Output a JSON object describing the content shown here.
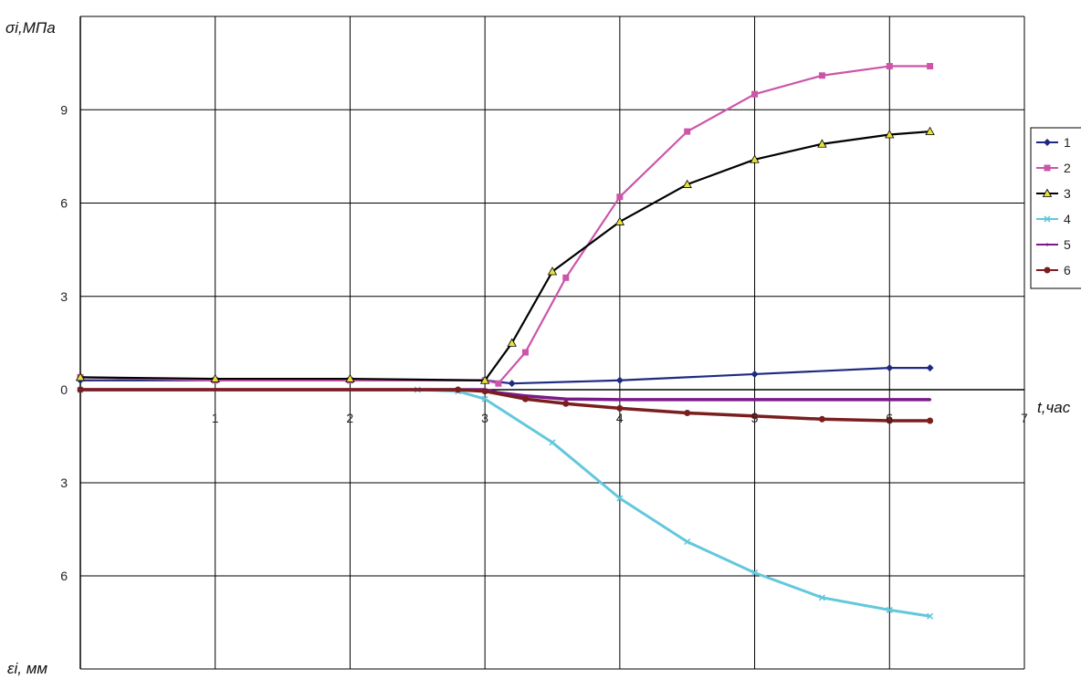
{
  "chart_data": {
    "type": "scatter",
    "ylabel_top": "σi,МПа",
    "ylabel_bottom": "εi, мм",
    "xlabel": "t,час",
    "xlim": [
      0,
      7
    ],
    "x_ticks": [
      "1",
      "2",
      "3",
      "4",
      "5",
      "6",
      "7"
    ],
    "upper_axis": {
      "unit": "МПа",
      "range": [
        0,
        12
      ],
      "ticks": [
        "0",
        "3",
        "6",
        "9"
      ]
    },
    "lower_axis": {
      "unit": "мм",
      "range": [
        0,
        9
      ],
      "ticks": [
        "3",
        "6"
      ]
    },
    "grid": true,
    "legend_position": "right",
    "series": [
      {
        "name": "1",
        "color": "#1f2a80",
        "marker": "diamond",
        "axis": "upper",
        "x": [
          0,
          1,
          2,
          3,
          3.2,
          4,
          5,
          6,
          6.3
        ],
        "y": [
          0.3,
          0.3,
          0.3,
          0.3,
          0.2,
          0.3,
          0.5,
          0.7,
          0.7
        ]
      },
      {
        "name": "2",
        "color": "#cc55aa",
        "marker": "square",
        "axis": "upper",
        "x": [
          0,
          1,
          2,
          3,
          3.1,
          3.3,
          3.6,
          4,
          4.5,
          5,
          5.5,
          6,
          6.3
        ],
        "y": [
          0.4,
          0.3,
          0.3,
          0.3,
          0.2,
          1.2,
          3.6,
          6.2,
          8.3,
          9.5,
          10.1,
          10.4,
          10.4
        ]
      },
      {
        "name": "3",
        "color": "#000000",
        "marker": "triangle",
        "axis": "upper",
        "x": [
          0,
          1,
          2,
          3,
          3.2,
          3.5,
          4,
          4.5,
          5,
          5.5,
          6,
          6.3
        ],
        "y": [
          0.4,
          0.35,
          0.35,
          0.3,
          1.5,
          3.8,
          5.4,
          6.6,
          7.4,
          7.9,
          8.2,
          8.3
        ]
      },
      {
        "name": "4",
        "color": "#62c8dc",
        "marker": "cross",
        "axis": "lower",
        "x": [
          0,
          2.5,
          2.8,
          3,
          3.5,
          4,
          4.5,
          5,
          5.5,
          6,
          6.3
        ],
        "y": [
          0,
          0,
          0.05,
          0.3,
          1.7,
          3.5,
          4.9,
          5.9,
          6.7,
          7.1,
          7.3
        ]
      },
      {
        "name": "5",
        "color": "#7a1a8a",
        "marker": "line",
        "axis": "lower",
        "x": [
          0,
          3,
          3.1,
          3.3,
          3.6,
          4,
          5,
          6,
          6.3
        ],
        "y": [
          0,
          0,
          0.1,
          0.2,
          0.3,
          0.32,
          0.32,
          0.32,
          0.32
        ]
      },
      {
        "name": "6",
        "color": "#7a1e1e",
        "marker": "circle",
        "axis": "lower",
        "x": [
          0,
          2.8,
          3,
          3.3,
          3.6,
          4,
          4.5,
          5,
          5.5,
          6,
          6.3
        ],
        "y": [
          0,
          0,
          0.05,
          0.3,
          0.45,
          0.6,
          0.75,
          0.85,
          0.95,
          1.0,
          1.0
        ]
      }
    ]
  }
}
